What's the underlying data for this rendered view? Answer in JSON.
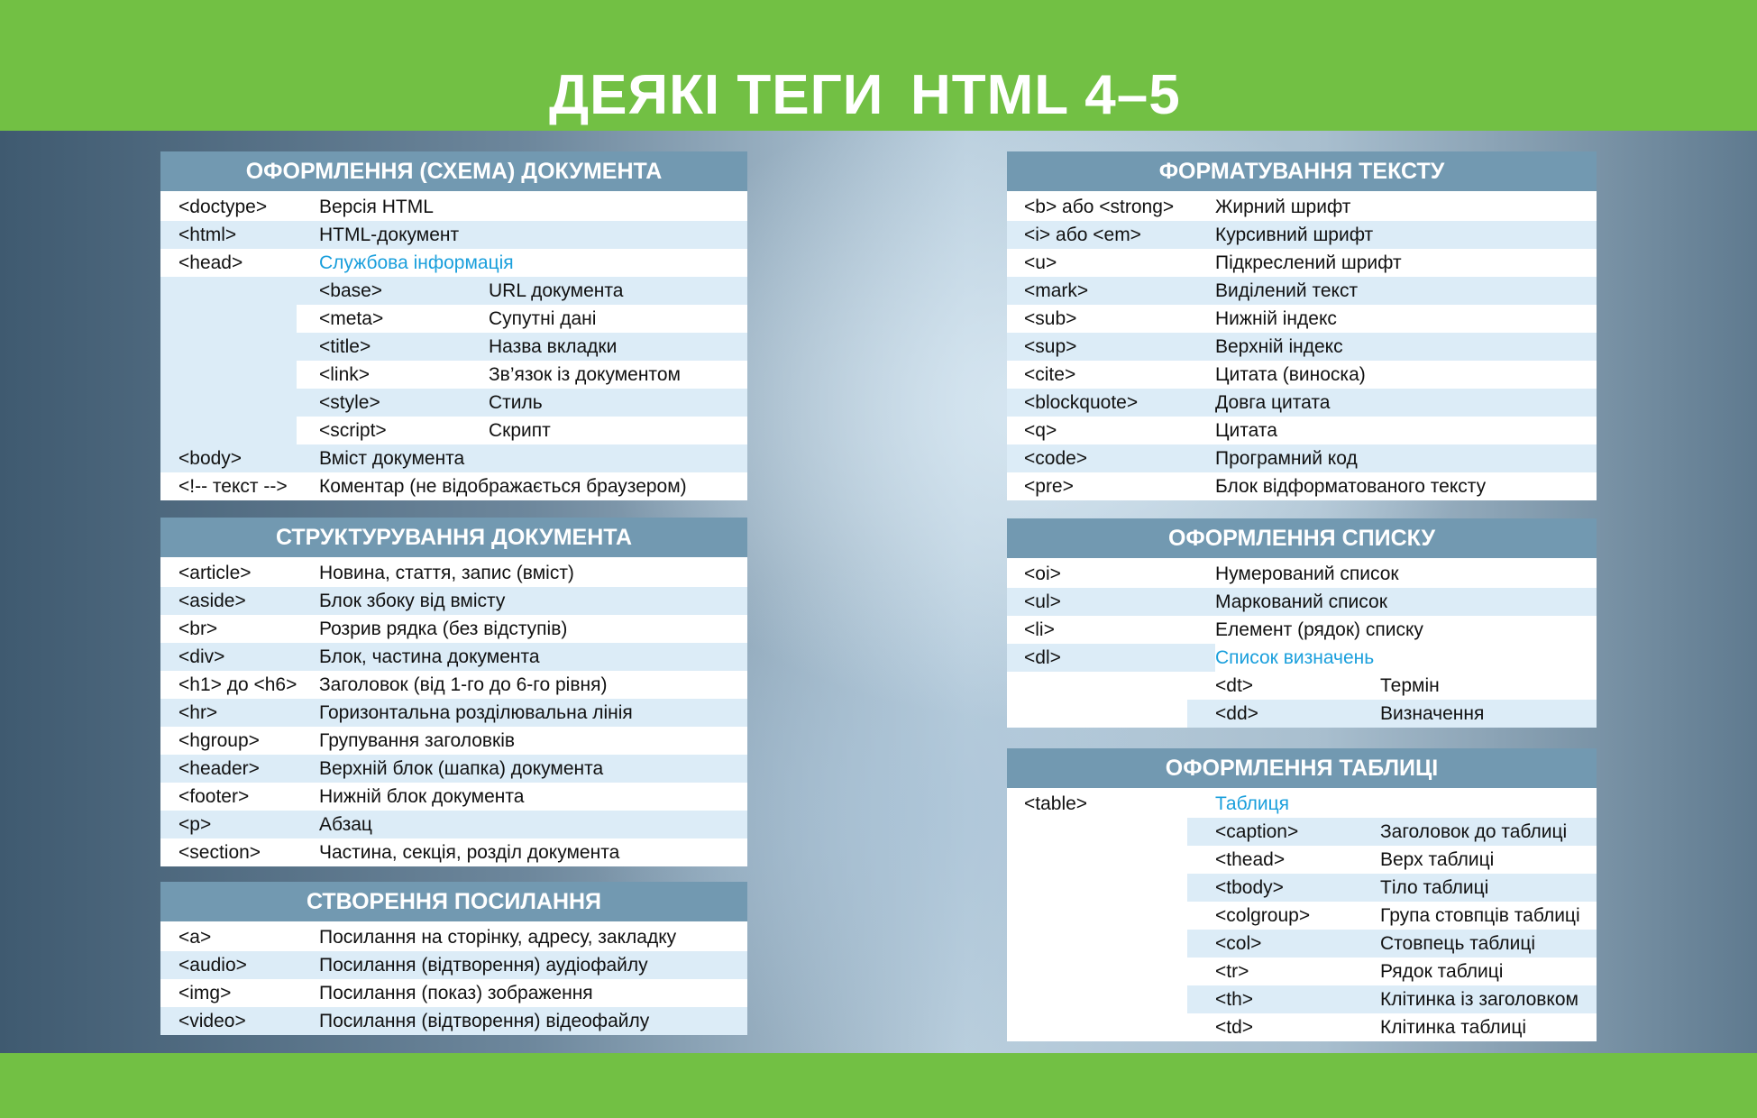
{
  "header": {
    "title_part1": "ДЕЯКІ ТЕГИ",
    "title_part2": "HTML 4–5"
  },
  "colors": {
    "green_bar": "#72c044",
    "section_header": "#7299b1",
    "stripe": "#dcecf7",
    "accent_text": "#1a9fdc"
  },
  "sections": [
    {
      "title": "ОФОРМЛЕННЯ (СХЕМА) ДОКУМЕНТА",
      "rows": [
        {
          "tag": "<doctype>",
          "desc": "Версія HTML"
        },
        {
          "tag": "<html>",
          "desc": "HTML-документ"
        },
        {
          "tag": "<head>",
          "desc": "Службова інформація",
          "children": [
            {
              "tag": "<base>",
              "desc": "URL документа"
            },
            {
              "tag": "<meta>",
              "desc": "Супутні дані"
            },
            {
              "tag": "<title>",
              "desc": "Назва вкладки"
            },
            {
              "tag": "<link>",
              "desc": "Зв’язок із документом"
            },
            {
              "tag": "<style>",
              "desc": "Стиль"
            },
            {
              "tag": "<script>",
              "desc": "Скрипт"
            }
          ]
        },
        {
          "tag": "<body>",
          "desc": "Вміст документа"
        },
        {
          "tag": "<!-- текст -->",
          "desc": "Коментар (не відображається браузером)"
        }
      ]
    },
    {
      "title": "СТРУКТУРУВАННЯ ДОКУМЕНТА",
      "rows": [
        {
          "tag": "<article>",
          "desc": "Новина, стаття, запис (вміст)"
        },
        {
          "tag": "<aside>",
          "desc": "Блок збоку від вмісту"
        },
        {
          "tag": "<br>",
          "desc": "Розрив рядка (без відступів)"
        },
        {
          "tag": "<div>",
          "desc": "Блок, частина документа"
        },
        {
          "tag": "<h1> до <h6>",
          "desc": "Заголовок (від 1-го до 6-го рівня)"
        },
        {
          "tag": "<hr>",
          "desc": "Горизонтальна розділювальна лінія"
        },
        {
          "tag": "<hgroup>",
          "desc": "Групування заголовків"
        },
        {
          "tag": "<header>",
          "desc": "Верхній блок (шапка) документа"
        },
        {
          "tag": "<footer>",
          "desc": "Нижній блок документа"
        },
        {
          "tag": "<p>",
          "desc": "Абзац"
        },
        {
          "tag": "<section>",
          "desc": "Частина, секція, розділ документа"
        }
      ]
    },
    {
      "title": "СТВОРЕННЯ ПОСИЛАННЯ",
      "rows": [
        {
          "tag": "<a>",
          "desc": "Посилання на сторінку, адресу, закладку"
        },
        {
          "tag": "<audio>",
          "desc": "Посилання (відтворення) аудіофайлу"
        },
        {
          "tag": "<img>",
          "desc": "Посилання (показ) зображення"
        },
        {
          "tag": "<video>",
          "desc": "Посилання (відтворення) відеофайлу"
        }
      ]
    },
    {
      "title": "ФОРМАТУВАННЯ ТЕКСТУ",
      "rows": [
        {
          "tag": "<b> або <strong>",
          "desc": "Жирний шрифт"
        },
        {
          "tag": "<i> або <em>",
          "desc": "Курсивний шрифт"
        },
        {
          "tag": "<u>",
          "desc": "Підкреслений шрифт"
        },
        {
          "tag": "<mark>",
          "desc": "Виділений текст"
        },
        {
          "tag": "<sub>",
          "desc": "Нижній індекс"
        },
        {
          "tag": "<sup>",
          "desc": "Верхній індекс"
        },
        {
          "tag": "<cite>",
          "desc": "Цитата (виноска)"
        },
        {
          "tag": "<blockquote>",
          "desc": "Довга цитата"
        },
        {
          "tag": "<q>",
          "desc": "Цитата"
        },
        {
          "tag": "<code>",
          "desc": "Програмний код"
        },
        {
          "tag": "<pre>",
          "desc": "Блок відформатованого тексту"
        }
      ]
    },
    {
      "title": "ОФОРМЛЕННЯ СПИСКУ",
      "rows": [
        {
          "tag": "<oi>",
          "desc": "Нумерований список"
        },
        {
          "tag": "<ul>",
          "desc": "Маркований список"
        },
        {
          "tag": "<li>",
          "desc": "Елемент (рядок) списку"
        },
        {
          "tag": "<dl>",
          "desc": "Список визначень",
          "children": [
            {
              "tag": "<dt>",
              "desc": "Термін"
            },
            {
              "tag": "<dd>",
              "desc": "Визначення"
            }
          ]
        }
      ]
    },
    {
      "title": "ОФОРМЛЕННЯ ТАБЛИЦІ",
      "rows": [
        {
          "tag": "<table>",
          "desc": "Таблиця",
          "children": [
            {
              "tag": "<caption>",
              "desc": "Заголовок до таблиці"
            },
            {
              "tag": "<thead>",
              "desc": "Верх таблиці"
            },
            {
              "tag": "<tbody>",
              "desc": "Тіло таблиці"
            },
            {
              "tag": "<colgroup>",
              "desc": "Група стовпців таблиці"
            },
            {
              "tag": "<col>",
              "desc": "Стовпець таблиці"
            },
            {
              "tag": "<tr>",
              "desc": "Рядок таблиці"
            },
            {
              "tag": "<th>",
              "desc": "Клітинка із заголовком"
            },
            {
              "tag": "<td>",
              "desc": "Клітинка таблиці"
            }
          ]
        }
      ]
    }
  ]
}
